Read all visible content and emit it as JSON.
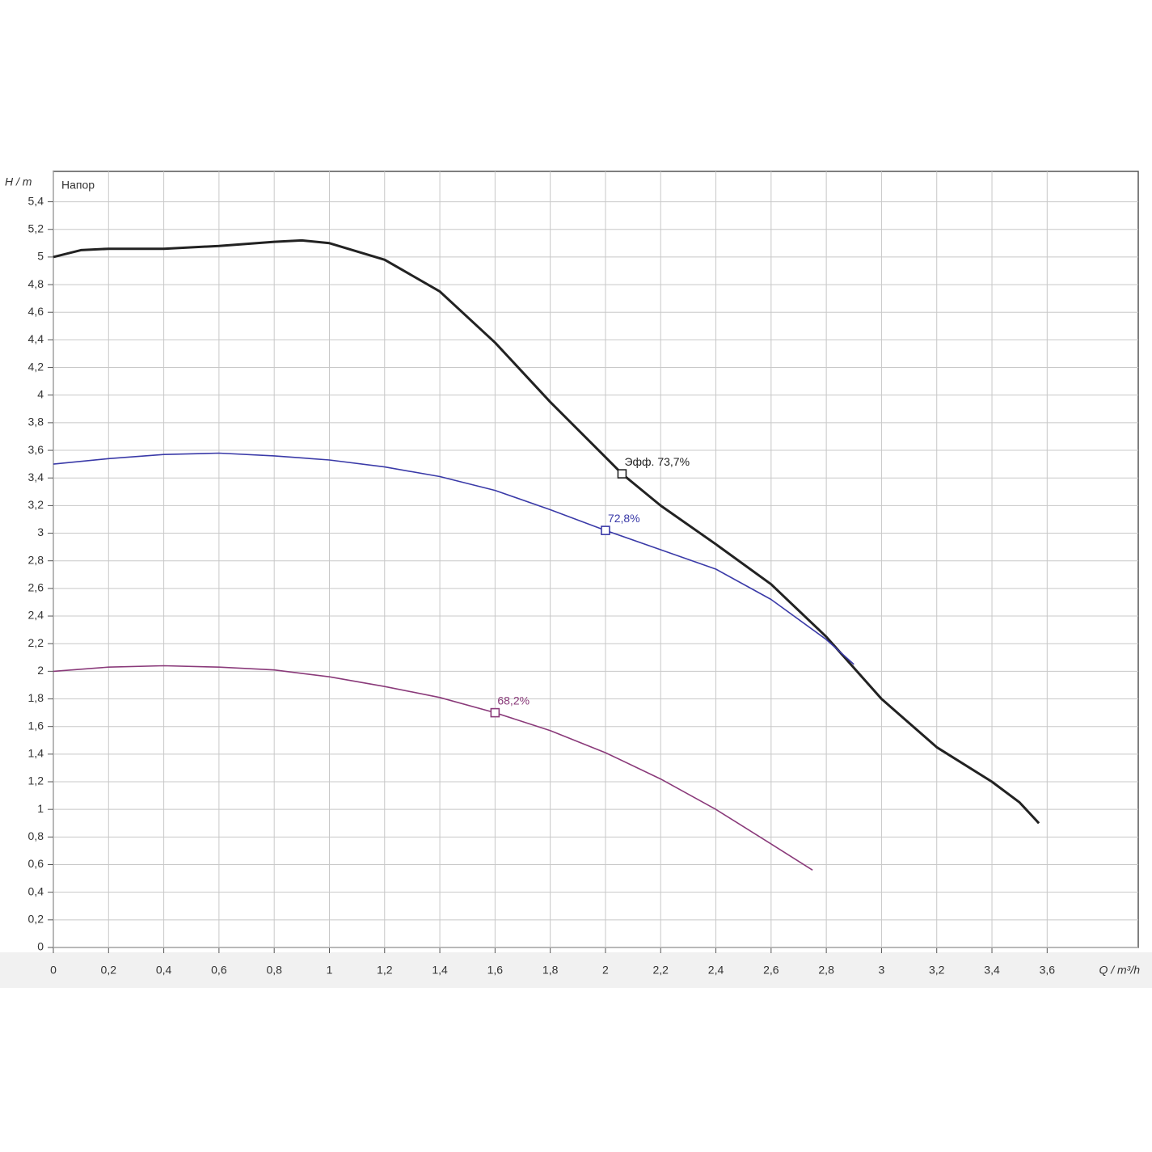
{
  "chart_data": {
    "type": "line",
    "inner_label": "Напор",
    "x_label": "Q / m³/h",
    "y_label": "H / m",
    "xlim": [
      0,
      3.93
    ],
    "ylim": [
      0,
      5.62
    ],
    "grid": true,
    "xticks": [
      0,
      {
        "value": 0.2,
        "label": "0,2"
      },
      {
        "value": 0.4,
        "label": "0,4"
      },
      {
        "value": 0.6,
        "label": "0,6"
      },
      {
        "value": 0.8,
        "label": "0,8"
      },
      1,
      {
        "value": 1.2,
        "label": "1,2"
      },
      {
        "value": 1.4,
        "label": "1,4"
      },
      {
        "value": 1.6,
        "label": "1,6"
      },
      {
        "value": 1.8,
        "label": "1,8"
      },
      2,
      {
        "value": 2.2,
        "label": "2,2"
      },
      {
        "value": 2.4,
        "label": "2,4"
      },
      {
        "value": 2.6,
        "label": "2,6"
      },
      {
        "value": 2.8,
        "label": "2,8"
      },
      3,
      {
        "value": 3.2,
        "label": "3,2"
      },
      {
        "value": 3.4,
        "label": "3,4"
      },
      {
        "value": 3.6,
        "label": "3,6"
      }
    ],
    "yticks": [
      0,
      {
        "value": 0.2,
        "label": "0,2"
      },
      {
        "value": 0.4,
        "label": "0,4"
      },
      {
        "value": 0.6,
        "label": "0,6"
      },
      {
        "value": 0.8,
        "label": "0,8"
      },
      1,
      {
        "value": 1.2,
        "label": "1,2"
      },
      {
        "value": 1.4,
        "label": "1,4"
      },
      {
        "value": 1.6,
        "label": "1,6"
      },
      {
        "value": 1.8,
        "label": "1,8"
      },
      2,
      {
        "value": 2.2,
        "label": "2,2"
      },
      {
        "value": 2.4,
        "label": "2,4"
      },
      {
        "value": 2.6,
        "label": "2,6"
      },
      {
        "value": 2.8,
        "label": "2,8"
      },
      3,
      {
        "value": 3.2,
        "label": "3,2"
      },
      {
        "value": 3.4,
        "label": "3,4"
      },
      {
        "value": 3.6,
        "label": "3,6"
      },
      {
        "value": 3.8,
        "label": "3,8"
      },
      4,
      {
        "value": 4.2,
        "label": "4,2"
      },
      {
        "value": 4.4,
        "label": "4,4"
      },
      {
        "value": 4.6,
        "label": "4,6"
      },
      {
        "value": 4.8,
        "label": "4,8"
      },
      5,
      {
        "value": 5.2,
        "label": "5,2"
      },
      {
        "value": 5.4,
        "label": "5,4"
      }
    ],
    "series": [
      {
        "color": "#222222",
        "x": [
          0,
          0.1,
          0.2,
          0.4,
          0.6,
          0.8,
          0.9,
          1.0,
          1.2,
          1.4,
          1.6,
          1.8,
          2.0,
          2.06,
          2.2,
          2.4,
          2.6,
          2.8,
          3.0,
          3.2,
          3.4,
          3.5,
          3.57
        ],
        "values": [
          5.0,
          5.05,
          5.06,
          5.06,
          5.08,
          5.11,
          5.12,
          5.1,
          4.98,
          4.75,
          4.38,
          3.95,
          3.55,
          3.43,
          3.2,
          2.92,
          2.63,
          2.25,
          1.8,
          1.45,
          1.2,
          1.05,
          0.9
        ]
      },
      {
        "color": "#3a3aa8",
        "x": [
          0,
          0.2,
          0.4,
          0.6,
          0.8,
          1.0,
          1.2,
          1.4,
          1.6,
          1.8,
          2.0,
          2.2,
          2.4,
          2.6,
          2.8,
          2.9
        ],
        "values": [
          3.5,
          3.54,
          3.57,
          3.58,
          3.56,
          3.53,
          3.48,
          3.41,
          3.31,
          3.17,
          3.02,
          2.88,
          2.74,
          2.52,
          2.23,
          2.05
        ]
      },
      {
        "color": "#8a3a7a",
        "x": [
          0,
          0.2,
          0.4,
          0.6,
          0.8,
          1.0,
          1.2,
          1.4,
          1.6,
          1.8,
          2.0,
          2.2,
          2.4,
          2.6,
          2.75
        ],
        "values": [
          2.0,
          2.03,
          2.04,
          2.03,
          2.01,
          1.96,
          1.89,
          1.81,
          1.7,
          1.57,
          1.41,
          1.22,
          1.0,
          0.75,
          0.56
        ]
      }
    ],
    "annotations": [
      {
        "x": 2.06,
        "y": 3.43,
        "text": "Эфф.  73,7%",
        "color": "#222222"
      },
      {
        "x": 2.0,
        "y": 3.02,
        "text": "72,8%",
        "color": "#3a3aa8"
      },
      {
        "x": 1.6,
        "y": 1.7,
        "text": "68,2%",
        "color": "#8a3a7a"
      }
    ]
  }
}
